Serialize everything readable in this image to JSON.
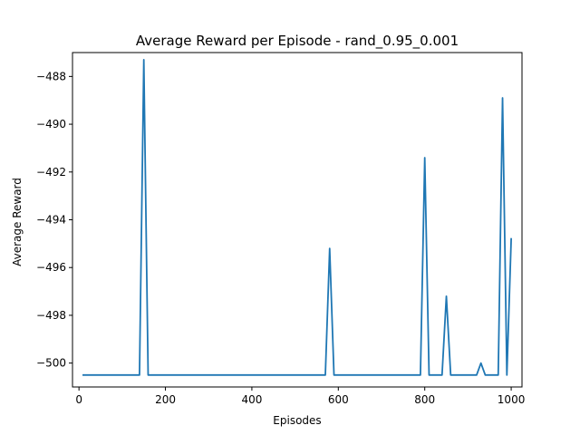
{
  "chart_data": {
    "type": "line",
    "title": "Average Reward per Episode - rand_0.95_0.001",
    "xlabel": "Episodes",
    "ylabel": "Average Reward",
    "xlim": [
      -15,
      1025
    ],
    "ylim": [
      -501.0,
      -487.0
    ],
    "x_ticks": [
      0,
      200,
      400,
      600,
      800,
      1000
    ],
    "x_tick_labels": [
      "0",
      "200",
      "400",
      "600",
      "800",
      "1000"
    ],
    "y_ticks": [
      -500,
      -498,
      -496,
      -494,
      -492,
      -490,
      -488
    ],
    "y_tick_labels": [
      "−500",
      "−498",
      "−496",
      "−494",
      "−492",
      "−490",
      "−488"
    ],
    "grid": false,
    "line_color": "#1f77b4",
    "series": [
      {
        "x": [
          10,
          140,
          150,
          160,
          570,
          580,
          590,
          790,
          800,
          810,
          840,
          850,
          860,
          920,
          930,
          940,
          970,
          980,
          990,
          1000
        ],
        "y": [
          -500.5,
          -500.5,
          -487.3,
          -500.5,
          -500.5,
          -495.2,
          -500.5,
          -500.5,
          -491.4,
          -500.5,
          -500.5,
          -497.2,
          -500.5,
          -500.5,
          -500.0,
          -500.5,
          -500.5,
          -488.9,
          -500.5,
          -494.8
        ]
      }
    ]
  }
}
